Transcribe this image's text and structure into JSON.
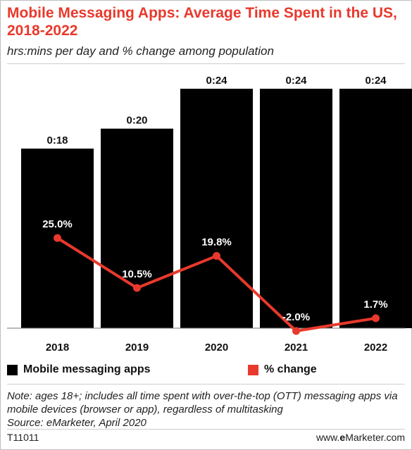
{
  "header": {
    "title": "Mobile Messaging Apps: Average Time Spent in the US, 2018-2022",
    "subtitle": "hrs:mins per day and % change among population"
  },
  "legend": {
    "bars_label": "Mobile messaging apps",
    "line_label": "% change"
  },
  "note": "Note: ages 18+; includes all time spent with over-the-top (OTT) messaging apps via mobile devices (browser or app), regardless of multitasking",
  "source": "Source: eMarketer, April 2020",
  "footer": {
    "id": "T11011",
    "brand_prefix": "www.",
    "brand_bold": "e",
    "brand_suffix": "Marketer.com"
  },
  "colors": {
    "bar": "#000000",
    "line": "#e8392c",
    "title": "#e8392c"
  },
  "chart_data": {
    "type": "bar",
    "categories": [
      "2018",
      "2019",
      "2020",
      "2021",
      "2022"
    ],
    "series": [
      {
        "name": "Mobile messaging apps",
        "type": "bar",
        "values": [
          18,
          20,
          24,
          24,
          24
        ],
        "labels": [
          "0:18",
          "0:20",
          "0:24",
          "0:24",
          "0:24"
        ],
        "unit": "minutes per day"
      },
      {
        "name": "% change",
        "type": "line",
        "values": [
          25.0,
          10.5,
          19.8,
          -2.0,
          1.7
        ],
        "labels": [
          "25.0%",
          "10.5%",
          "19.8%",
          "-2.0%",
          "1.7%"
        ]
      }
    ],
    "title": "Mobile Messaging Apps: Average Time Spent in the US, 2018-2022",
    "subtitle": "hrs:mins per day and % change among population",
    "grid": false,
    "legend_position": "bottom-left"
  }
}
